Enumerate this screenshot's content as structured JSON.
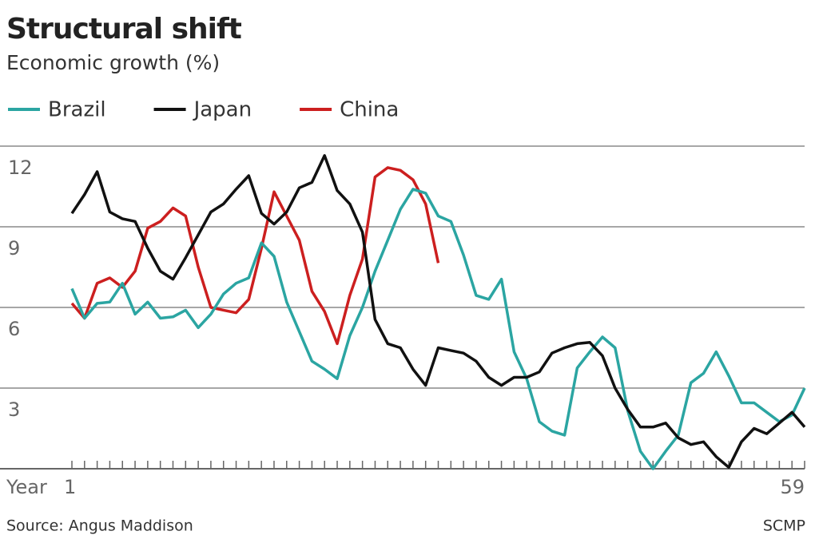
{
  "chart_data": {
    "type": "line",
    "title": "Structural shift",
    "subtitle": "Economic growth (%)",
    "x_label": "Year",
    "source": "Source: Angus Maddison",
    "credit": "SCMP",
    "x": [
      1,
      2,
      3,
      4,
      5,
      6,
      7,
      8,
      9,
      10,
      11,
      12,
      13,
      14,
      15,
      16,
      17,
      18,
      19,
      20,
      21,
      22,
      23,
      24,
      25,
      26,
      27,
      28,
      29,
      30,
      31,
      32,
      33,
      34,
      35,
      36,
      37,
      38,
      39,
      40,
      41,
      42,
      43,
      44,
      45,
      46,
      47,
      48,
      49,
      50,
      51,
      52,
      53,
      54,
      55,
      56,
      57,
      58,
      59
    ],
    "xlim": [
      1,
      59
    ],
    "xticks": [
      1,
      59
    ],
    "ylim": [
      0,
      12
    ],
    "yticks": [
      3,
      6,
      9,
      12
    ],
    "grid": true,
    "series": [
      {
        "name": "Brazil",
        "color": "#2ba5a2",
        "values": [
          6.7,
          5.6,
          6.15,
          6.2,
          6.9,
          5.75,
          6.2,
          5.6,
          5.65,
          5.9,
          5.25,
          5.75,
          6.5,
          6.9,
          7.1,
          8.4,
          7.9,
          6.2,
          5.1,
          4.0,
          3.7,
          3.35,
          4.95,
          6.0,
          7.35,
          8.5,
          9.65,
          10.4,
          10.25,
          9.4,
          9.2,
          7.95,
          6.45,
          6.3,
          7.05,
          4.35,
          3.35,
          1.75,
          1.4,
          1.25,
          3.75,
          4.35,
          4.9,
          4.5,
          2.15,
          0.65,
          0,
          0.65,
          1.25,
          3.2,
          3.55,
          4.35,
          3.45,
          2.45,
          2.45,
          2.1,
          1.75,
          2.0,
          3.0
        ]
      },
      {
        "name": "Japan",
        "color": "#111111",
        "values": [
          9.5,
          10.2,
          11.05,
          9.55,
          9.3,
          9.2,
          8.2,
          7.35,
          7.05,
          7.85,
          8.7,
          9.55,
          9.85,
          10.4,
          10.9,
          9.5,
          9.1,
          9.55,
          10.45,
          10.65,
          11.65,
          10.35,
          9.85,
          8.8,
          5.55,
          4.65,
          4.5,
          3.7,
          3.1,
          4.5,
          4.4,
          4.3,
          4.0,
          3.4,
          3.1,
          3.4,
          3.4,
          3.6,
          4.3,
          4.5,
          4.65,
          4.7,
          4.2,
          3.0,
          2.2,
          1.55,
          1.55,
          1.7,
          1.15,
          0.9,
          1.0,
          0.45,
          0.05,
          1.0,
          1.5,
          1.3,
          1.7,
          2.1,
          1.55
        ]
      },
      {
        "name": "China",
        "color": "#cc1f1f",
        "values": [
          6.15,
          5.6,
          6.9,
          7.1,
          6.75,
          7.35,
          8.95,
          9.2,
          9.7,
          9.4,
          7.5,
          6.0,
          5.9,
          5.8,
          6.3,
          8.2,
          10.3,
          9.4,
          8.5,
          6.6,
          5.85,
          4.65,
          6.45,
          7.8,
          10.85,
          11.2,
          11.1,
          10.75,
          9.85,
          7.65,
          null,
          null,
          null,
          null,
          null,
          null,
          null,
          null,
          null,
          null,
          null,
          null,
          null,
          null,
          null,
          null,
          null,
          null,
          null,
          null,
          null,
          null,
          null,
          null,
          null,
          null,
          null,
          null,
          null
        ]
      }
    ]
  }
}
